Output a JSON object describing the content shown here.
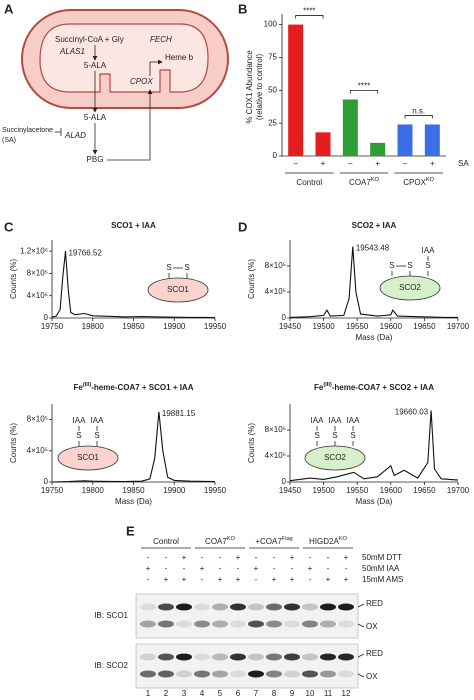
{
  "panel_labels": [
    "A",
    "B",
    "C",
    "D",
    "E"
  ],
  "pathway": {
    "succinyl_coa": "Succinyl-CoA + Gly",
    "alas1": "ALAS1",
    "ala_mito": "5-ALA",
    "fech": "FECH",
    "heme": "Heme b",
    "cpox": "CPOX",
    "ala_cyto": "5-ALA",
    "inhibitor": [
      "Succinylacetone",
      "(SA)"
    ],
    "alad": "ALAD",
    "pbg": "PBG"
  },
  "chart_data": [
    {
      "type": "bar",
      "y_label": [
        "% COX1 Abundance",
        "(relative to control)"
      ],
      "categories": [
        "–",
        "+",
        "–",
        "+",
        "–",
        "+"
      ],
      "values": [
        100,
        18,
        43,
        10,
        24,
        24
      ],
      "colors": [
        "#e41e1e",
        "#e41e1e",
        "#2e9d36",
        "#2e9d36",
        "#3c6fe6",
        "#3c6fe6"
      ],
      "ylim": [
        0,
        105
      ],
      "yticks": [
        0,
        25,
        50,
        75,
        100
      ],
      "x_label": "SA",
      "groups": [
        "Control",
        [
          "COA7",
          "KO"
        ],
        [
          "CPOX",
          "KO"
        ]
      ],
      "significance": [
        "****",
        "****",
        "n.s."
      ]
    },
    {
      "type": "line",
      "title": "SCO1 + IAA",
      "y_label": "Counts (%)",
      "x": [
        19750,
        19755,
        19760,
        19763,
        19766.52,
        19770,
        19773,
        19778,
        19790,
        19800,
        19820,
        19840,
        19860,
        19880,
        19900,
        19920,
        19940,
        19950
      ],
      "values": [
        20000,
        30000,
        150000,
        700000,
        1200000,
        500000,
        100000,
        60000,
        80000,
        40000,
        30000,
        20000,
        25000,
        20000,
        15000,
        10000,
        10000,
        8000
      ],
      "xlim": [
        19750,
        19950
      ],
      "xticks": [
        19750,
        19800,
        19850,
        19900,
        19950
      ],
      "ylim": [
        0,
        1400000
      ],
      "yticks": [
        0,
        {
          "value": 400000,
          "label": "4×10⁵"
        },
        {
          "value": 800000,
          "label": "8×10⁵"
        },
        {
          "value": 1200000,
          "label": "1.2×10⁶"
        }
      ],
      "peak_label": "19766.52",
      "diagram": {
        "protein": "SCO1",
        "color": "#f9d3cc",
        "bridge": true,
        "sites": [
          [
            "S"
          ],
          [
            "S"
          ]
        ]
      }
    },
    {
      "type": "line",
      "title": [
        "Fe",
        "(III)",
        "-heme-COA7 + SCO1 + IAA"
      ],
      "y_label": "Counts (%)",
      "x_label": "Mass (Da)",
      "x": [
        19750,
        19770,
        19790,
        19800,
        19820,
        19840,
        19860,
        19870,
        19876,
        19881.15,
        19886,
        19892,
        19900,
        19920,
        19950
      ],
      "values": [
        0,
        5000,
        15000,
        10000,
        8000,
        6000,
        10000,
        40000,
        300000,
        900000,
        400000,
        60000,
        20000,
        10000,
        5000
      ],
      "xlim": [
        19750,
        19950
      ],
      "xticks": [
        19750,
        19800,
        19850,
        19900,
        19950
      ],
      "ylim": [
        0,
        1000000
      ],
      "yticks": [
        0,
        {
          "value": 400000,
          "label": "4×10⁵"
        },
        {
          "value": 800000,
          "label": "8×10⁵"
        }
      ],
      "peak_label": "19881.15",
      "diagram": {
        "protein": "SCO1",
        "color": "#f9d3cc",
        "bridge": false,
        "sites": [
          [
            "IAA",
            "S"
          ],
          [
            "IAA",
            "S"
          ]
        ]
      }
    },
    {
      "type": "line",
      "title": "SCO2 + IAA",
      "y_label": "Counts (%)",
      "x_label": "Mass (Da)",
      "x": [
        19450,
        19480,
        19500,
        19505,
        19510,
        19530,
        19538,
        19543.48,
        19548,
        19555,
        19580,
        19600,
        19603,
        19610,
        19640,
        19660,
        19680,
        19700
      ],
      "values": [
        10000,
        20000,
        40000,
        120000,
        30000,
        40000,
        300000,
        1100000,
        400000,
        60000,
        30000,
        50000,
        120000,
        30000,
        20000,
        15000,
        10000,
        10000
      ],
      "xlim": [
        19450,
        19700
      ],
      "xticks": [
        19450,
        19500,
        19550,
        19600,
        19650,
        19700
      ],
      "ylim": [
        0,
        1200000
      ],
      "yticks": [
        0,
        {
          "value": 400000,
          "label": "4×10⁵"
        },
        {
          "value": 800000,
          "label": "8×10⁵"
        }
      ],
      "peak_label": "19543.48",
      "diagram": {
        "protein": "SCO2",
        "color": "#d6f1c9",
        "bridge": true,
        "sites": [
          [
            "S"
          ],
          [
            "S"
          ],
          [
            "IAA",
            "S"
          ]
        ]
      }
    },
    {
      "type": "line",
      "title": [
        "Fe",
        "(III)",
        "-heme-COA7 + SCO2 + IAA"
      ],
      "y_label": "Counts (%)",
      "x_label": "Mass (Da)",
      "x": [
        19450,
        19480,
        19500,
        19520,
        19545,
        19560,
        19580,
        19600,
        19605,
        19620,
        19640,
        19655,
        19660.03,
        19665,
        19675,
        19700
      ],
      "values": [
        20000,
        60000,
        40000,
        80000,
        150000,
        50000,
        80000,
        250000,
        100000,
        180000,
        60000,
        300000,
        1100000,
        200000,
        50000,
        30000
      ],
      "xlim": [
        19450,
        19700
      ],
      "xticks": [
        19450,
        19500,
        19550,
        19600,
        19650,
        19700
      ],
      "ylim": [
        0,
        1200000
      ],
      "yticks": [
        0,
        {
          "value": 400000,
          "label": "4×10⁵"
        },
        {
          "value": 800000,
          "label": "8×10⁵"
        }
      ],
      "peak_label": "19660.03",
      "diagram": {
        "protein": "SCO2",
        "color": "#d6f1c9",
        "bridge": false,
        "sites": [
          [
            "IAA",
            "S"
          ],
          [
            "IAA",
            "S"
          ],
          [
            "IAA",
            "S"
          ]
        ]
      }
    }
  ],
  "blot": {
    "groups": [
      "Control",
      [
        "COA7",
        "KO"
      ],
      [
        "+COA7",
        "Flag"
      ],
      [
        "HIGD2A",
        "KO"
      ]
    ],
    "treatments": [
      {
        "name": "50mM DTT",
        "signs": [
          "-",
          "-",
          "+",
          "-",
          "-",
          "+",
          "-",
          "-",
          "+",
          "-",
          "-",
          "+"
        ]
      },
      {
        "name": "50mM IAA",
        "signs": [
          "+",
          "-",
          "-",
          "+",
          "-",
          "-",
          "+",
          "-",
          "-",
          "+",
          "-",
          "-"
        ]
      },
      {
        "name": "15mM AMS",
        "signs": [
          "-",
          "+",
          "+",
          "-",
          "+",
          "+",
          "-",
          "+",
          "+",
          "-",
          "+",
          "+"
        ]
      }
    ],
    "blots": [
      {
        "label": "IB: SCO1",
        "red": "RED",
        "ox": "OX"
      },
      {
        "label": "IB: SCO2",
        "red": "RED",
        "ox": "OX"
      }
    ],
    "lanes": [
      1,
      2,
      3,
      4,
      5,
      6,
      7,
      8,
      9,
      10,
      11,
      12
    ]
  }
}
